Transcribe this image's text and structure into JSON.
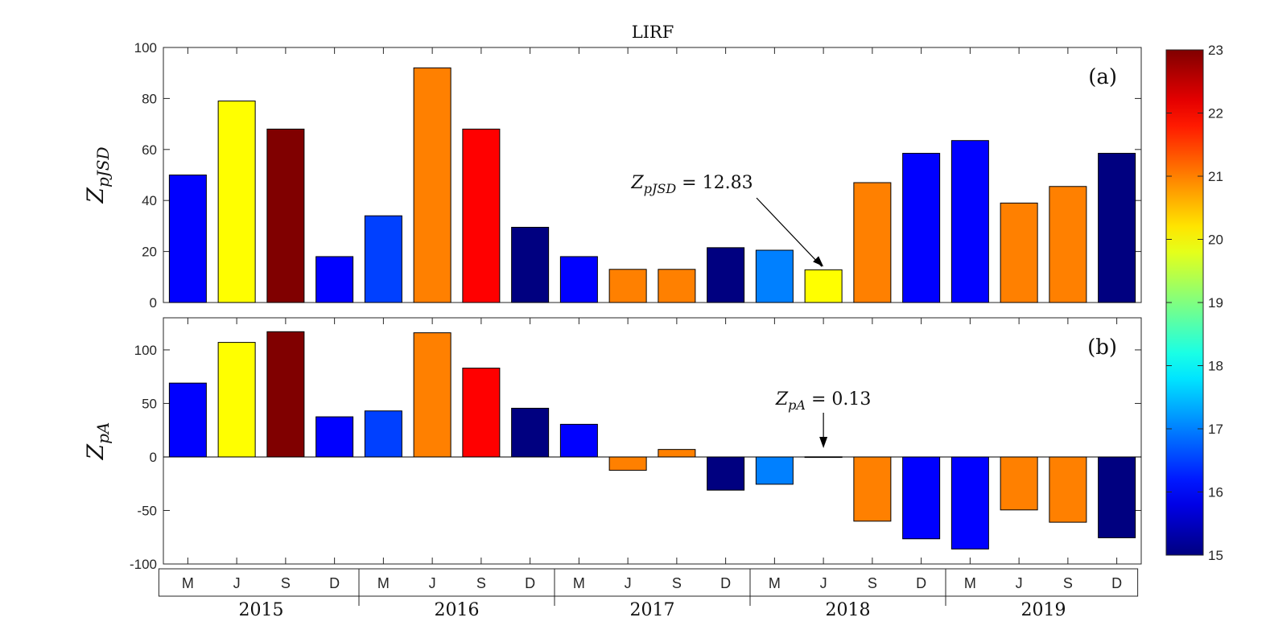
{
  "chart_data": {
    "type": "bar",
    "title": "LIRF",
    "categories": [
      "M",
      "J",
      "S",
      "D",
      "M",
      "J",
      "S",
      "D",
      "M",
      "J",
      "S",
      "D",
      "M",
      "J",
      "S",
      "D",
      "M",
      "J",
      "S",
      "D"
    ],
    "years": [
      "2015",
      "2016",
      "2017",
      "2018",
      "2019"
    ],
    "color_values": [
      16,
      20,
      23,
      16,
      16.5,
      21,
      22,
      15,
      16,
      21,
      21,
      15,
      17,
      20,
      21,
      16,
      16,
      21,
      21,
      15
    ],
    "colorbar": {
      "min": 15,
      "max": 23,
      "ticks": [
        15,
        16,
        17,
        18,
        19,
        20,
        21,
        22,
        23
      ],
      "tick_labels": [
        "15",
        "16",
        "17",
        "18",
        "19",
        "20",
        "21",
        "22",
        "23"
      ],
      "colormap": "jet"
    },
    "panels": [
      {
        "id": "a",
        "label": "(a)",
        "ylabel": {
          "base": "Z",
          "sub": "pJSD"
        },
        "ylim": [
          0,
          100
        ],
        "yticks": [
          0,
          20,
          40,
          60,
          80,
          100
        ],
        "ytick_labels": [
          "0",
          "20",
          "40",
          "60",
          "80",
          "100"
        ],
        "values": [
          50,
          79,
          68,
          18,
          34,
          92,
          68,
          29.5,
          18,
          13,
          13,
          21.5,
          20.5,
          12.83,
          47,
          58.5,
          63.5,
          39,
          45.5,
          58.5
        ],
        "annotation": {
          "base": "Z",
          "sub": "pJSD",
          "text": " = 12.83",
          "target_index": 13
        }
      },
      {
        "id": "b",
        "label": "(b)",
        "ylabel": {
          "base": "Z",
          "sub": "pA"
        },
        "ylim": [
          -100,
          130
        ],
        "yticks": [
          -100,
          -50,
          0,
          50,
          100
        ],
        "ytick_labels": [
          "-100",
          "-50",
          "0",
          "50",
          "100"
        ],
        "values": [
          69,
          107,
          117,
          37.5,
          43,
          116,
          83,
          45.5,
          30.5,
          -12.5,
          7,
          -31,
          -25.5,
          0.13,
          -60,
          -76.5,
          -86,
          -49.5,
          -61,
          -75.5
        ],
        "annotation": {
          "base": "Z",
          "sub": "pA",
          "text": " = 0.13",
          "target_index": 13
        }
      }
    ]
  }
}
